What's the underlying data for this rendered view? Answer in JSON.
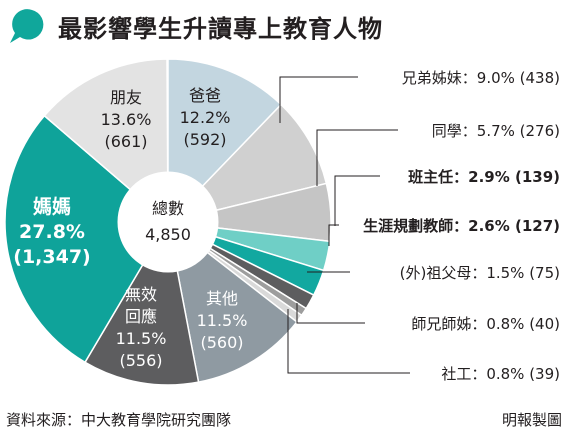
{
  "title": "最影響學生升讀專上教育人物",
  "total": {
    "label": "總數",
    "value": "4,850"
  },
  "source": "資料來源：中大教育學院研究團隊",
  "credit": "明報製圖",
  "colors": {
    "teal": "#0fa39a",
    "light_gray": "#e3e3e3",
    "light_blue": "#c3d6e0",
    "mid_gray": "#c9c9c9",
    "dark_gray": "#5d5d5f",
    "blue_gray": "#8f9aa2",
    "title_icon": "#10a79b"
  },
  "chart_data": {
    "type": "pie",
    "title": "最影響學生升讀專上教育人物",
    "total": 4850,
    "slices": [
      {
        "name": "爸爸",
        "percent": 12.2,
        "count": 592,
        "color": "#c3d6e0",
        "label": [
          "爸爸",
          "12.2%",
          "(592)"
        ]
      },
      {
        "name": "兄弟姊妹",
        "percent": 9.0,
        "count": 438,
        "color": "#d0d0d0",
        "label": "兄弟姊妹：9.0% (438)"
      },
      {
        "name": "同學",
        "percent": 5.7,
        "count": 276,
        "color": "#c5c5c5",
        "label": "同學：5.7% (276)"
      },
      {
        "name": "班主任",
        "percent": 2.9,
        "count": 139,
        "color": "#6fcfc6",
        "label": "班主任：2.9% (139)"
      },
      {
        "name": "生涯規劃教師",
        "percent": 2.6,
        "count": 127,
        "color": "#12a8a0",
        "label": "生涯規劃教師：2.6% (127)"
      },
      {
        "name": "(外)祖父母",
        "percent": 1.5,
        "count": 75,
        "color": "#5d5d5f",
        "label": "(外)祖父母：1.5% (75)"
      },
      {
        "name": "師兄師姊",
        "percent": 0.8,
        "count": 40,
        "color": "#9d9d9d",
        "label": "師兄師姊：0.8% (40)"
      },
      {
        "name": "社工",
        "percent": 0.8,
        "count": 39,
        "color": "#d9d9d9",
        "label": "社工：0.8% (39)"
      },
      {
        "name": "其他",
        "percent": 11.5,
        "count": 560,
        "color": "#8f9aa2",
        "label": [
          "其他",
          "11.5%",
          "(560)"
        ]
      },
      {
        "name": "無效回應",
        "percent": 11.5,
        "count": 556,
        "color": "#5d5d5f",
        "label": [
          "無效",
          "回應",
          "11.5%",
          "(556)"
        ]
      },
      {
        "name": "媽媽",
        "percent": 27.8,
        "count": 1347,
        "color": "#0fa39a",
        "label": [
          "媽媽",
          "27.8%",
          "(1,347)"
        ]
      },
      {
        "name": "朋友",
        "percent": 13.6,
        "count": 661,
        "color": "#e3e3e3",
        "label": [
          "朋友",
          "13.6%",
          "(661)"
        ]
      }
    ]
  }
}
